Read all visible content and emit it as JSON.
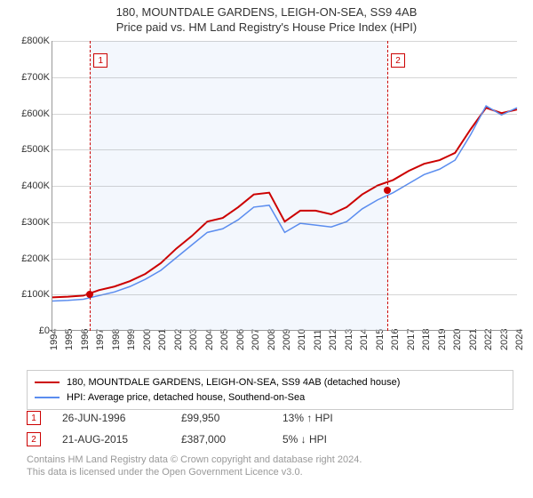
{
  "title_line1": "180, MOUNTDALE GARDENS, LEIGH-ON-SEA, SS9 4AB",
  "title_line2": "Price paid vs. HM Land Registry's House Price Index (HPI)",
  "chart": {
    "type": "line",
    "x_years": [
      1994,
      1995,
      1996,
      1997,
      1998,
      1999,
      2000,
      2001,
      2002,
      2003,
      2004,
      2005,
      2006,
      2007,
      2008,
      2009,
      2010,
      2011,
      2012,
      2013,
      2014,
      2015,
      2016,
      2017,
      2018,
      2019,
      2020,
      2021,
      2022,
      2023,
      2024
    ],
    "ylim": [
      0,
      800000
    ],
    "ytick_step": 100000,
    "ytick_labels": [
      "£0",
      "£100K",
      "£200K",
      "£300K",
      "£400K",
      "£500K",
      "£600K",
      "£700K",
      "£800K"
    ],
    "plot_bg": "#ffffff",
    "shade_bg": "#eaf1fb",
    "grid_color": "#888888",
    "series": [
      {
        "id": "price_paid",
        "color": "#cc0000",
        "width": 2,
        "values": [
          90000,
          92000,
          95000,
          110000,
          120000,
          135000,
          155000,
          185000,
          225000,
          260000,
          300000,
          310000,
          340000,
          375000,
          380000,
          300000,
          330000,
          330000,
          320000,
          340000,
          375000,
          400000,
          415000,
          440000,
          460000,
          470000,
          490000,
          555000,
          615000,
          600000,
          610000
        ]
      },
      {
        "id": "hpi",
        "color": "#5b8def",
        "width": 1.5,
        "values": [
          80000,
          82000,
          85000,
          95000,
          105000,
          120000,
          140000,
          165000,
          200000,
          235000,
          270000,
          280000,
          305000,
          340000,
          345000,
          270000,
          295000,
          290000,
          285000,
          300000,
          335000,
          360000,
          380000,
          405000,
          430000,
          445000,
          470000,
          540000,
          620000,
          595000,
          615000
        ]
      }
    ],
    "markers": [
      {
        "n": "1",
        "year": 1996.48,
        "price": 99950
      },
      {
        "n": "2",
        "year": 2015.64,
        "price": 387000
      }
    ],
    "shade_ranges": [
      {
        "from_year": 1996.48,
        "to_year": 2015.64
      }
    ]
  },
  "legend": {
    "series1_swatch": "#cc0000",
    "series1_label": "180, MOUNTDALE GARDENS, LEIGH-ON-SEA, SS9 4AB (detached house)",
    "series2_swatch": "#5b8def",
    "series2_label": "HPI: Average price, detached house, Southend-on-Sea"
  },
  "annotations": [
    {
      "n": "1",
      "date": "26-JUN-1996",
      "price": "£99,950",
      "pct": "13% ↑ HPI"
    },
    {
      "n": "2",
      "date": "21-AUG-2015",
      "price": "£387,000",
      "pct": "5% ↓ HPI"
    }
  ],
  "footnote_line1": "Contains HM Land Registry data © Crown copyright and database right 2024.",
  "footnote_line2": "This data is licensed under the Open Government Licence v3.0."
}
